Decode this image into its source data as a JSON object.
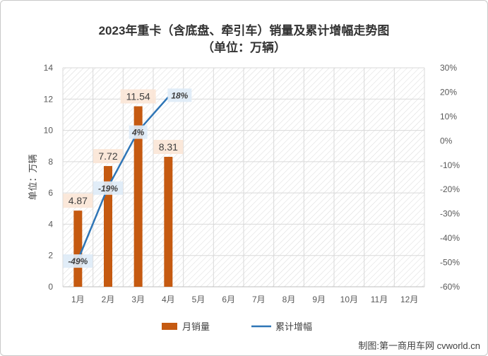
{
  "chart_data": {
    "type": "bar",
    "title": "2023年重卡（含底盘、牵引车）销量及累计增幅走势图",
    "subtitle": "（单位：万辆）",
    "ylabel": "单位：万辆",
    "categories": [
      "1月",
      "2月",
      "3月",
      "4月",
      "5月",
      "6月",
      "7月",
      "8月",
      "9月",
      "10月",
      "11月",
      "12月"
    ],
    "ylim": [
      0,
      14
    ],
    "yticks": [
      0,
      2,
      4,
      6,
      8,
      10,
      12,
      14
    ],
    "y2lim": [
      -60,
      30
    ],
    "y2ticks": [
      "-60%",
      "-50%",
      "-40%",
      "-30%",
      "-20%",
      "-10%",
      "0%",
      "10%",
      "20%",
      "30%"
    ],
    "series": [
      {
        "name": "月销量",
        "kind": "bar",
        "axis": "left",
        "color": "#c55a11",
        "values": [
          4.87,
          7.72,
          11.54,
          8.31,
          null,
          null,
          null,
          null,
          null,
          null,
          null,
          null
        ],
        "labels": [
          "4.87",
          "7.72",
          "11.54",
          "8.31"
        ]
      },
      {
        "name": "累计增幅",
        "kind": "line",
        "axis": "right",
        "color": "#2e75b6",
        "values": [
          -49,
          -19,
          4,
          18,
          null,
          null,
          null,
          null,
          null,
          null,
          null,
          null
        ],
        "labels": [
          "-49%",
          "-19%",
          "4%",
          "18%"
        ]
      }
    ],
    "grid": true,
    "legend_position": "bottom"
  },
  "source": "制图:第一商用车网 cvworld.cn"
}
